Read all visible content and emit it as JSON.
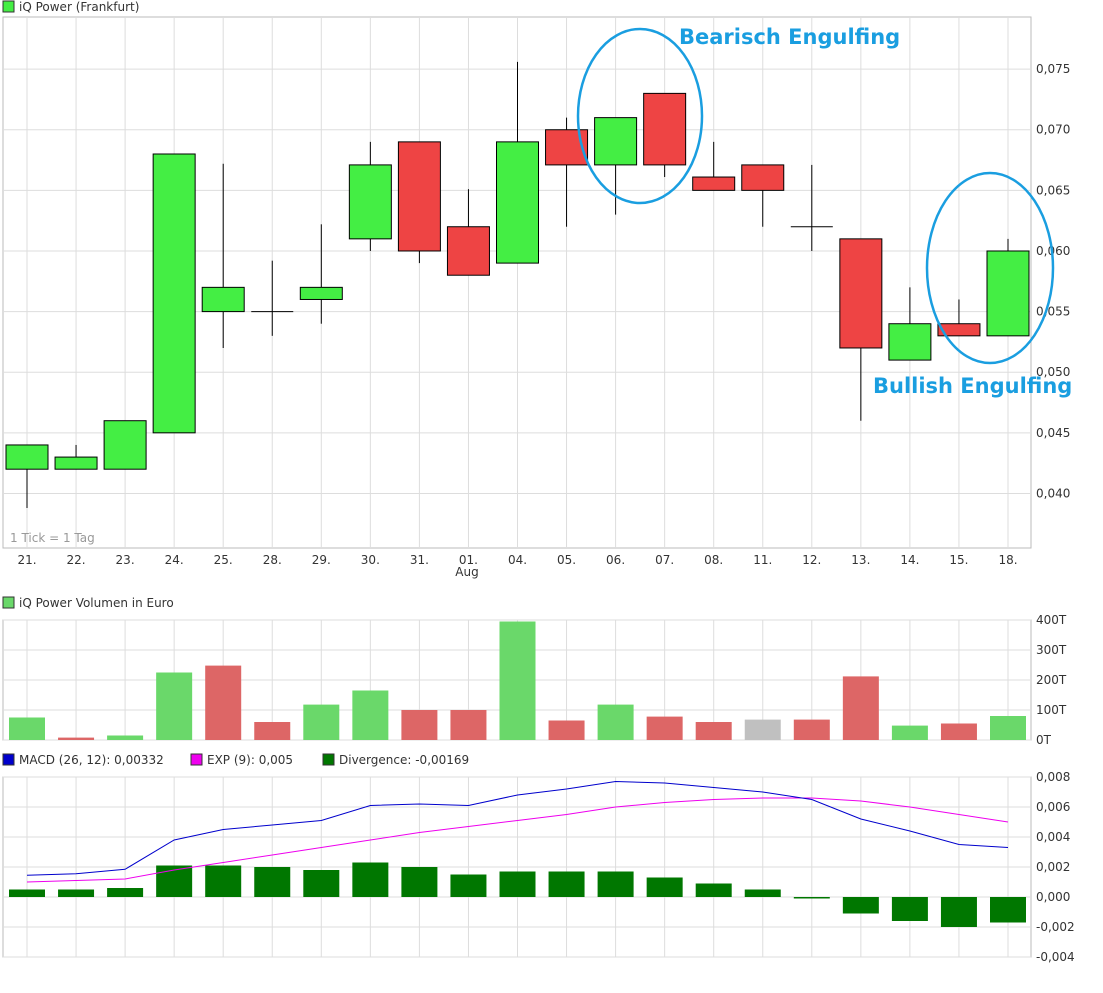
{
  "chart_data": [
    {
      "type": "candlestick",
      "title": "iQ Power (Frankfurt)",
      "x_labels": [
        "21.",
        "22.",
        "23.",
        "24.",
        "25.",
        "28.",
        "29.",
        "30.",
        "31.",
        "01.",
        "04.",
        "05.",
        "06.",
        "07.",
        "08.",
        "11.",
        "12.",
        "13.",
        "14.",
        "15.",
        "18."
      ],
      "month_label": "Aug",
      "note": "1 Tick = 1 Tag",
      "ylim": [
        0.0355,
        0.0793
      ],
      "y_ticks": [
        0.04,
        0.045,
        0.05,
        0.055,
        0.06,
        0.065,
        0.07,
        0.075
      ],
      "y_tick_labels": [
        "0,040",
        "0,045",
        "0,050",
        "0,055",
        "0,060",
        "0,065",
        "0,070",
        "0,075"
      ],
      "candles": [
        {
          "open": 0.042,
          "high": 0.044,
          "low": 0.0388,
          "close": 0.044
        },
        {
          "open": 0.042,
          "high": 0.044,
          "low": 0.042,
          "close": 0.043
        },
        {
          "open": 0.042,
          "high": 0.046,
          "low": 0.042,
          "close": 0.046
        },
        {
          "open": 0.045,
          "high": 0.068,
          "low": 0.045,
          "close": 0.068
        },
        {
          "open": 0.055,
          "high": 0.0672,
          "low": 0.052,
          "close": 0.057
        },
        {
          "open": 0.055,
          "high": 0.0592,
          "low": 0.053,
          "close": 0.055
        },
        {
          "open": 0.056,
          "high": 0.0622,
          "low": 0.054,
          "close": 0.057
        },
        {
          "open": 0.061,
          "high": 0.069,
          "low": 0.06,
          "close": 0.0671
        },
        {
          "open": 0.069,
          "high": 0.069,
          "low": 0.059,
          "close": 0.06
        },
        {
          "open": 0.062,
          "high": 0.0651,
          "low": 0.058,
          "close": 0.058
        },
        {
          "open": 0.059,
          "high": 0.0756,
          "low": 0.059,
          "close": 0.069
        },
        {
          "open": 0.07,
          "high": 0.071,
          "low": 0.062,
          "close": 0.0671
        },
        {
          "open": 0.0671,
          "high": 0.071,
          "low": 0.063,
          "close": 0.071
        },
        {
          "open": 0.073,
          "high": 0.073,
          "low": 0.0661,
          "close": 0.0671
        },
        {
          "open": 0.0661,
          "high": 0.069,
          "low": 0.065,
          "close": 0.065
        },
        {
          "open": 0.0671,
          "high": 0.0671,
          "low": 0.062,
          "close": 0.065
        },
        {
          "open": 0.062,
          "high": 0.0671,
          "low": 0.06,
          "close": 0.062
        },
        {
          "open": 0.061,
          "high": 0.061,
          "low": 0.046,
          "close": 0.052
        },
        {
          "open": 0.051,
          "high": 0.057,
          "low": 0.051,
          "close": 0.054
        },
        {
          "open": 0.054,
          "high": 0.056,
          "low": 0.053,
          "close": 0.053
        },
        {
          "open": 0.053,
          "high": 0.061,
          "low": 0.053,
          "close": 0.06
        }
      ],
      "annotations": [
        {
          "text": "Bearisch Engulfing",
          "color": "#1a9ee0"
        },
        {
          "text": "Bullish Engulfing",
          "color": "#1a9ee0"
        }
      ]
    },
    {
      "type": "bar",
      "title": "iQ Power Volumen in Euro",
      "ylim": [
        0,
        400
      ],
      "y_ticks": [
        0,
        100,
        200,
        300,
        400
      ],
      "y_tick_labels": [
        "0T",
        "100T",
        "200T",
        "300T",
        "400T"
      ],
      "values": [
        75,
        8,
        15,
        225,
        248,
        60,
        118,
        165,
        100,
        100,
        395,
        65,
        118,
        78,
        60,
        68,
        68,
        212,
        48,
        55,
        80
      ],
      "colors": [
        "up",
        "down",
        "up",
        "up",
        "down",
        "down",
        "up",
        "up",
        "down",
        "down",
        "up",
        "down",
        "up",
        "down",
        "down",
        "neutral",
        "down",
        "down",
        "up",
        "down",
        "up"
      ]
    },
    {
      "type": "line",
      "series": [
        {
          "name": "MACD (26, 12): 0,00332",
          "color": "#0000cc",
          "values": [
            0.00145,
            0.00155,
            0.00185,
            0.0038,
            0.0045,
            0.0048,
            0.0051,
            0.0061,
            0.0062,
            0.0061,
            0.0068,
            0.0072,
            0.0077,
            0.0076,
            0.0073,
            0.007,
            0.0065,
            0.0052,
            0.0044,
            0.0035,
            0.0033
          ]
        },
        {
          "name": "EXP (9): 0,005",
          "color": "#ee00ee",
          "values": [
            0.001,
            0.0011,
            0.0012,
            0.0018,
            0.0023,
            0.0028,
            0.0033,
            0.0038,
            0.0043,
            0.0047,
            0.0051,
            0.0055,
            0.006,
            0.0063,
            0.0065,
            0.0066,
            0.0066,
            0.0064,
            0.006,
            0.0055,
            0.005
          ]
        },
        {
          "name": "Divergence: -0,00169",
          "color": "#007700",
          "kind": "bar",
          "values": [
            0.0005,
            0.0005,
            0.0006,
            0.0021,
            0.0021,
            0.002,
            0.0018,
            0.0023,
            0.002,
            0.0015,
            0.0017,
            0.0017,
            0.0017,
            0.0013,
            0.0009,
            0.0005,
            -0.0001,
            -0.0011,
            -0.0016,
            -0.002,
            -0.0017
          ]
        }
      ],
      "ylim": [
        -0.004,
        0.008
      ],
      "y_ticks": [
        -0.004,
        -0.002,
        0,
        0.002,
        0.004,
        0.006,
        0.008
      ],
      "y_tick_labels": [
        "-0,004",
        "-0,002",
        "0,000",
        "0,002",
        "0,004",
        "0,006",
        "0,008"
      ]
    }
  ],
  "colors": {
    "up": "#44ee44",
    "down": "#ee4444",
    "vol_up": "#6ad86a",
    "vol_down": "#dd6666",
    "vol_neutral": "#c0c0c0",
    "grid": "#dddddd",
    "border": "#bbbbbb"
  }
}
